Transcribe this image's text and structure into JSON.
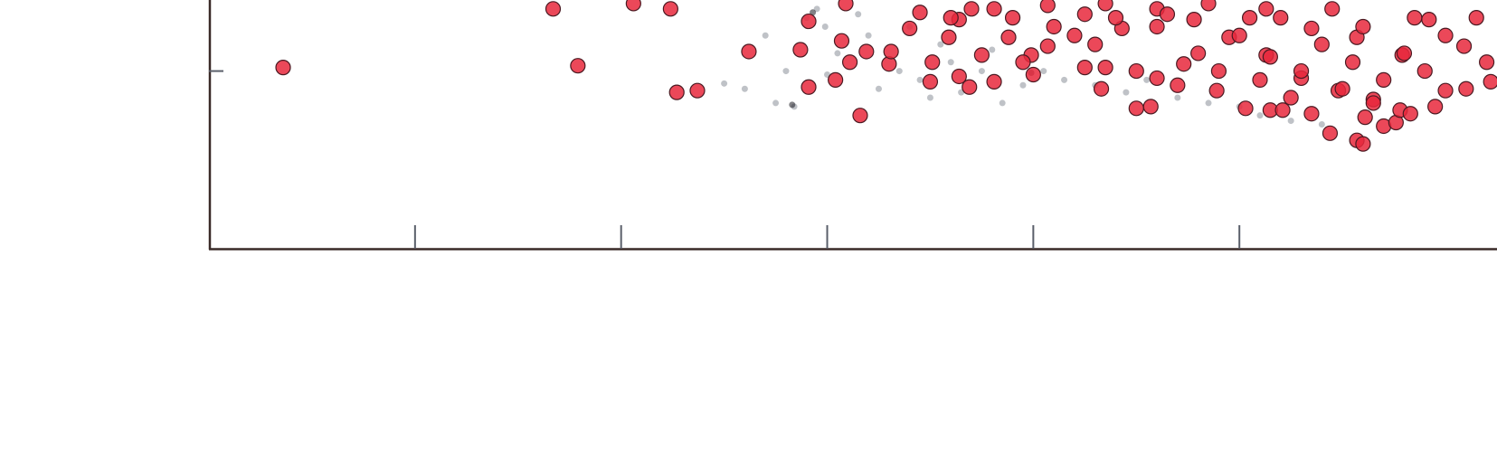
{
  "chart_data": {
    "type": "scatter",
    "xlim": [
      0,
      6.25
    ],
    "ylim": [
      0,
      1.4
    ],
    "xticks": [
      1,
      2,
      3,
      4,
      5
    ],
    "yticks": [
      1
    ],
    "series": [
      {
        "color": "#8a8f99",
        "x": [
          2.5,
          2.6,
          2.75,
          2.8,
          2.9,
          3.0,
          3.05,
          3.2,
          3.25,
          3.35,
          3.45,
          3.5,
          3.55,
          3.65,
          3.75,
          3.85,
          3.95,
          4.05,
          4.15,
          4.3,
          4.45,
          4.55,
          4.7,
          4.85,
          5.0,
          5.1,
          5.25,
          5.4,
          2.7,
          2.95,
          3.15,
          3.4,
          2.84,
          3.6,
          3.8,
          2.99
        ],
        "values": [
          0.93,
          0.9,
          0.82,
          1.0,
          1.3,
          0.98,
          1.1,
          1.2,
          0.9,
          1.0,
          0.95,
          0.85,
          1.15,
          0.88,
          1.0,
          0.82,
          0.92,
          1.0,
          0.95,
          0.92,
          0.88,
          0.95,
          0.85,
          0.82,
          0.8,
          0.75,
          0.72,
          0.7,
          1.2,
          1.35,
          1.32,
          1.25,
          0.8,
          1.05,
          1.12,
          1.25
        ]
      },
      {
        "color": "#1c1c22",
        "x": [
          2.83,
          2.93,
          3.99
        ],
        "values": [
          0.81,
          1.33,
          0.99
        ]
      },
      {
        "color": "#e8283c",
        "x": [
          0.36,
          1.67,
          1.79,
          2.06,
          2.24,
          2.27,
          2.37,
          2.62,
          2.87,
          2.91,
          2.91,
          3.04,
          3.07,
          3.11,
          3.16,
          3.19,
          3.09,
          3.3,
          3.31,
          3.4,
          3.5,
          3.51,
          3.64,
          3.69,
          3.81,
          3.75,
          3.88,
          3.99,
          4.07,
          4.25,
          4.33,
          4.35,
          4.5,
          4.57,
          4.6,
          4.73,
          4.89,
          5.03,
          5.15,
          5.21,
          5.35,
          5.44,
          5.57,
          5.6,
          5.61,
          5.7,
          5.76,
          5.78,
          5.83,
          5.65,
          5.48,
          5.3,
          5.13,
          4.95,
          4.78,
          4.6,
          4.43,
          4.25,
          4.07,
          3.81,
          3.64,
          3.59,
          5.57,
          5.79,
          5.92,
          6.09,
          6.22,
          6.0,
          5.35,
          5.13,
          4.2,
          4.4,
          4.6,
          4.8,
          5.0,
          5.2,
          5.4,
          5.6,
          5.8,
          6.0,
          4.5,
          4.7,
          4.9,
          5.1,
          5.3,
          5.5,
          5.7,
          5.9,
          6.1,
          4.3,
          4.1,
          3.9,
          3.7,
          3.95,
          5.05,
          5.45,
          5.85,
          6.15,
          5.25,
          5.65,
          4.85,
          4.35,
          3.6,
          3.45,
          4.0,
          5.95,
          6.2,
          5.55,
          4.65,
          5.15
        ],
        "values": [
          1.02,
          1.35,
          1.03,
          1.38,
          1.35,
          0.88,
          0.89,
          1.11,
          1.12,
          0.91,
          1.28,
          0.95,
          1.17,
          1.05,
          0.75,
          1.11,
          1.38,
          1.04,
          1.11,
          1.24,
          0.94,
          1.05,
          0.97,
          0.91,
          0.94,
          1.09,
          1.19,
          1.09,
          1.14,
          1.02,
          0.9,
          1.02,
          0.79,
          0.8,
          0.96,
          1.04,
          0.89,
          0.79,
          0.78,
          0.78,
          0.76,
          0.65,
          0.61,
          0.59,
          0.74,
          0.69,
          0.71,
          0.78,
          0.76,
          0.84,
          0.89,
          0.96,
          1.09,
          1.19,
          1.29,
          1.35,
          1.24,
          1.32,
          1.37,
          1.35,
          1.29,
          1.19,
          1.19,
          1.09,
          1.29,
          1.14,
          0.94,
          0.89,
          1.24,
          1.35,
          1.2,
          1.3,
          1.25,
          1.1,
          1.2,
          1.3,
          1.15,
          1.25,
          1.1,
          1.2,
          1.0,
          0.92,
          1.0,
          0.95,
          1.0,
          0.9,
          0.95,
          1.0,
          0.9,
          1.15,
          1.25,
          1.3,
          1.35,
          1.05,
          1.3,
          1.35,
          1.3,
          1.3,
          0.85,
          0.82,
          1.38,
          1.38,
          1.3,
          1.33,
          0.98,
          0.8,
          1.05,
          1.05,
          1.32,
          1.08
        ]
      }
    ]
  }
}
